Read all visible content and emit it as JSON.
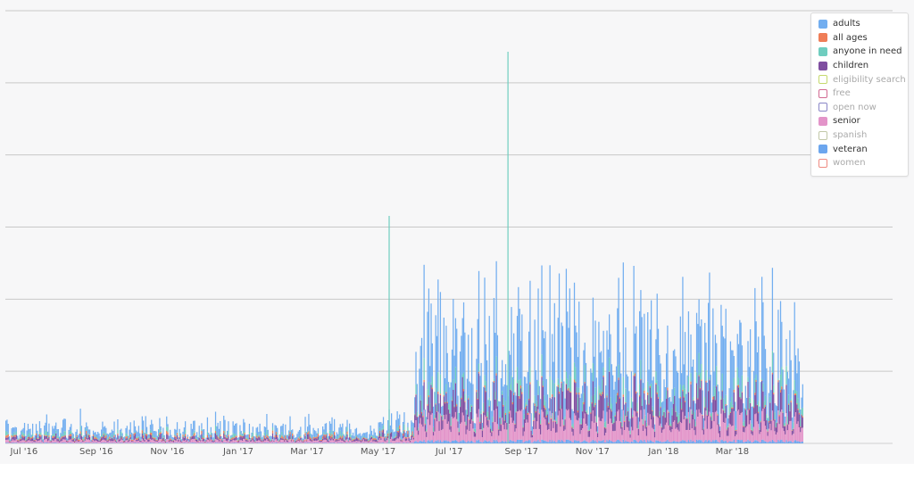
{
  "chart_data": {
    "type": "bar",
    "stacked": true,
    "xlabel": "",
    "ylabel": "",
    "y_tick_labels": [],
    "x_tick_labels": [
      "Jul '16",
      "Sep '16",
      "Nov '16",
      "Jan '17",
      "Mar '17",
      "May '17",
      "Jul '17",
      "Sep '17",
      "Nov '17",
      "Jan '18",
      "Mar '18"
    ],
    "x_range": [
      "2016-06-15",
      "2018-05-01"
    ],
    "grid": "horizontal",
    "legend_position": "top-right",
    "legend": [
      {
        "name": "adults",
        "color": "#72aef0",
        "visible": true
      },
      {
        "name": "all ages",
        "color": "#ef7d57",
        "visible": true
      },
      {
        "name": "anyone in need",
        "color": "#6fcdbf",
        "visible": true
      },
      {
        "name": "children",
        "color": "#7f4ea0",
        "visible": true
      },
      {
        "name": "eligibility search",
        "color": "#c5d96e",
        "visible": false
      },
      {
        "name": "free",
        "color": "#d26a92",
        "visible": false
      },
      {
        "name": "open now",
        "color": "#8a86c7",
        "visible": false
      },
      {
        "name": "senior",
        "color": "#e394c9",
        "visible": true
      },
      {
        "name": "spanish",
        "color": "#c2c8a8",
        "visible": false
      },
      {
        "name": "veteran",
        "color": "#6ca6ee",
        "visible": true
      },
      {
        "name": "women",
        "color": "#ef8b82",
        "visible": false
      }
    ],
    "series_pattern": "daily stacked counts; low level Jun 2016 - May 2017, sharp increase from early Jun 2017, peak spike near late Aug 2017",
    "notable_spikes": [
      {
        "date": "2017-05-10",
        "series": "anyone in need"
      },
      {
        "date": "2017-08-20",
        "series": "anyone in need"
      }
    ]
  }
}
